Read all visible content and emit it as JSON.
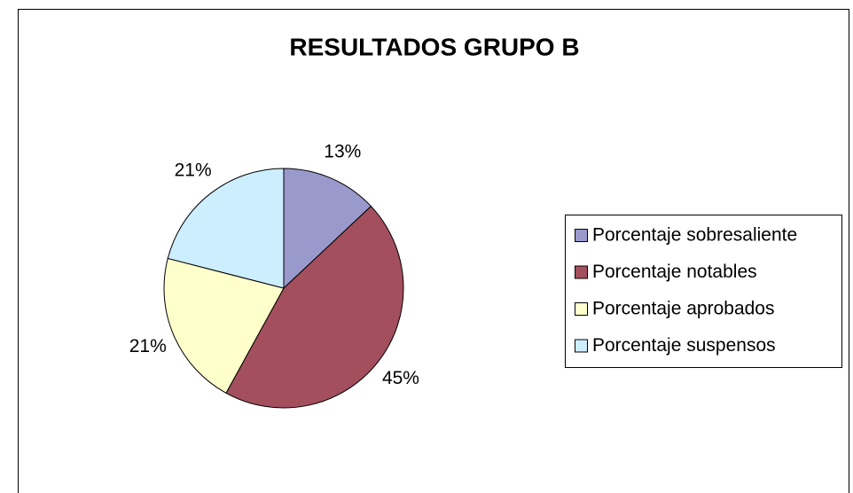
{
  "chart_data": {
    "type": "pie",
    "title": "RESULTADOS GRUPO B",
    "categories": [
      "Porcentaje sobresaliente",
      "Porcentaje notables",
      "Porcentaje aprobados",
      "Porcentaje suspensos"
    ],
    "values": [
      13,
      45,
      21,
      21
    ],
    "value_labels": [
      "13%",
      "45%",
      "21%",
      "21%"
    ],
    "colors": [
      "#9999cc",
      "#a34f5e",
      "#ffffcc",
      "#cceeff"
    ],
    "legend": "right"
  }
}
